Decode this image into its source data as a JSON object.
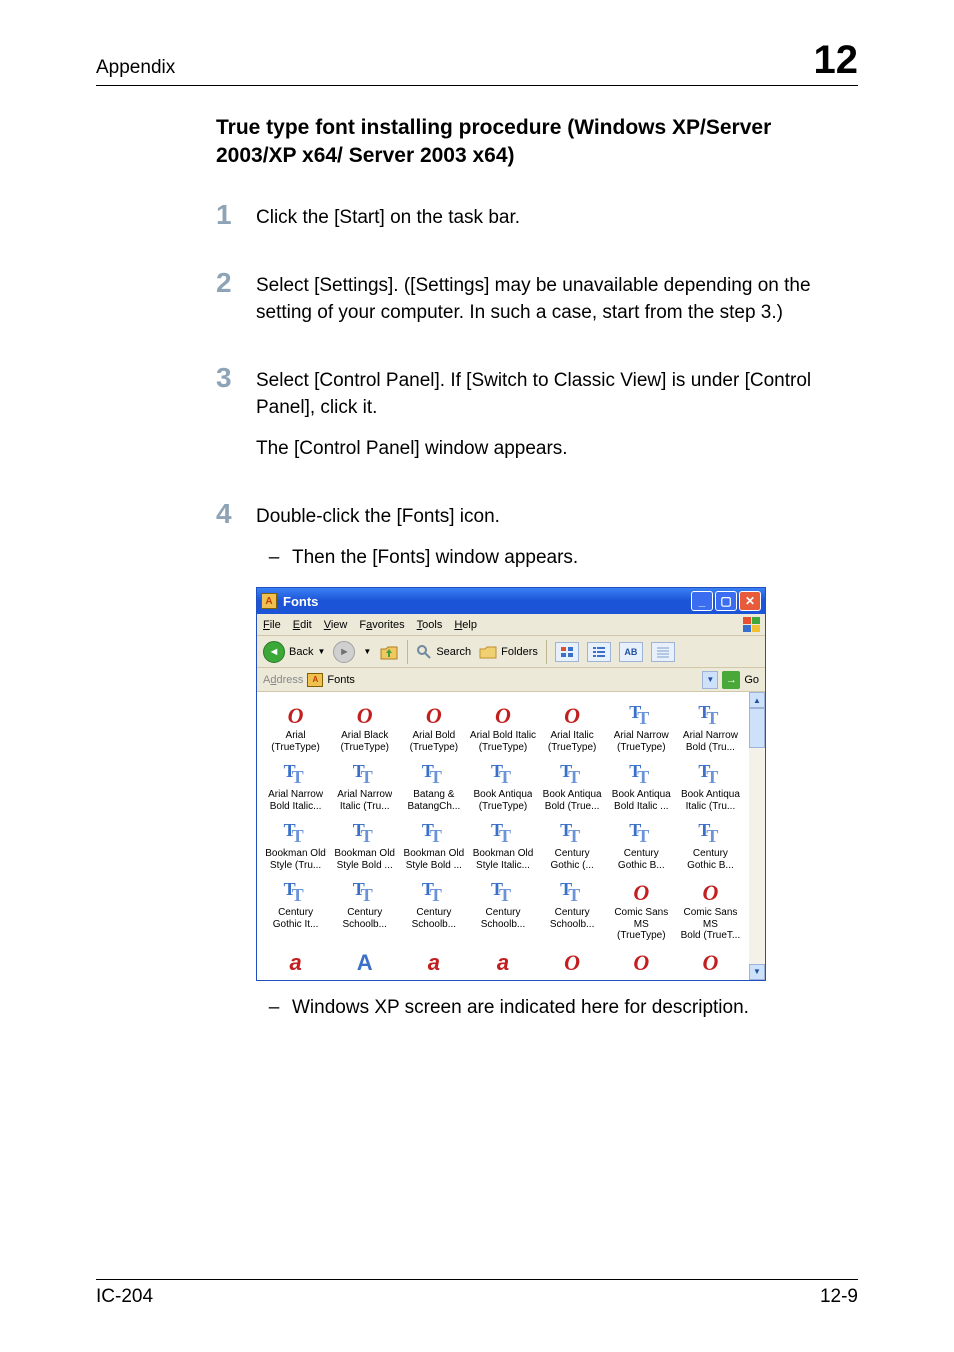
{
  "header": {
    "label": "Appendix",
    "chapter": "12"
  },
  "section_title": "True type font installing procedure (Windows XP/Server 2003/XP x64/ Server 2003 x64)",
  "steps": [
    {
      "num": "1",
      "paras": [
        "Click the [Start] on the task bar."
      ],
      "subs": []
    },
    {
      "num": "2",
      "paras": [
        "Select [Settings]. ([Settings] may be unavailable depending on the setting of your computer. In such a case, start from the step 3.)"
      ],
      "subs": []
    },
    {
      "num": "3",
      "paras": [
        "Select [Control Panel]. If [Switch to Classic View] is under [Control Panel], click it.",
        "The [Control Panel] window appears."
      ],
      "subs": []
    },
    {
      "num": "4",
      "paras": [
        "Double-click the [Fonts] icon."
      ],
      "subs": [
        "Then the [Fonts] window appears."
      ]
    }
  ],
  "post_sub": "Windows XP screen are indicated here for description.",
  "footer": {
    "left": "IC-204",
    "right": "12-9"
  },
  "win": {
    "title": "Fonts",
    "menu": [
      "File",
      "Edit",
      "View",
      "Favorites",
      "Tools",
      "Help"
    ],
    "back_label": "Back",
    "search_label": "Search",
    "folders_label": "Folders",
    "go_label": "Go",
    "address_label": "Address",
    "address_value": "Fonts",
    "view_btn_ab": "AB",
    "fonts": [
      {
        "icon": "o",
        "glyph": "O",
        "line1": "Arial",
        "line2": "(TrueType)"
      },
      {
        "icon": "o",
        "glyph": "O",
        "line1": "Arial Black",
        "line2": "(TrueType)"
      },
      {
        "icon": "o",
        "glyph": "O",
        "line1": "Arial Bold",
        "line2": "(TrueType)"
      },
      {
        "icon": "o",
        "glyph": "O",
        "line1": "Arial Bold Italic",
        "line2": "(TrueType)"
      },
      {
        "icon": "o",
        "glyph": "O",
        "line1": "Arial Italic",
        "line2": "(TrueType)"
      },
      {
        "icon": "tt",
        "glyph": "",
        "line1": "Arial Narrow",
        "line2": "(TrueType)"
      },
      {
        "icon": "tt",
        "glyph": "",
        "line1": "Arial Narrow",
        "line2": "Bold (Tru..."
      },
      {
        "icon": "tt",
        "glyph": "",
        "line1": "Arial Narrow",
        "line2": "Bold Italic..."
      },
      {
        "icon": "tt",
        "glyph": "",
        "line1": "Arial Narrow",
        "line2": "Italic (Tru..."
      },
      {
        "icon": "tt",
        "glyph": "",
        "line1": "Batang &",
        "line2": "BatangCh..."
      },
      {
        "icon": "tt",
        "glyph": "",
        "line1": "Book Antiqua",
        "line2": "(TrueType)"
      },
      {
        "icon": "tt",
        "glyph": "",
        "line1": "Book Antiqua",
        "line2": "Bold (True..."
      },
      {
        "icon": "tt",
        "glyph": "",
        "line1": "Book Antiqua",
        "line2": "Bold Italic ..."
      },
      {
        "icon": "tt",
        "glyph": "",
        "line1": "Book Antiqua",
        "line2": "Italic (Tru..."
      },
      {
        "icon": "tt",
        "glyph": "",
        "line1": "Bookman Old",
        "line2": "Style (Tru..."
      },
      {
        "icon": "tt",
        "glyph": "",
        "line1": "Bookman Old",
        "line2": "Style Bold ..."
      },
      {
        "icon": "tt",
        "glyph": "",
        "line1": "Bookman Old",
        "line2": "Style Bold ..."
      },
      {
        "icon": "tt",
        "glyph": "",
        "line1": "Bookman Old",
        "line2": "Style Italic..."
      },
      {
        "icon": "tt",
        "glyph": "",
        "line1": "Century",
        "line2": "Gothic (..."
      },
      {
        "icon": "tt",
        "glyph": "",
        "line1": "Century",
        "line2": "Gothic B..."
      },
      {
        "icon": "tt",
        "glyph": "",
        "line1": "Century",
        "line2": "Gothic B..."
      },
      {
        "icon": "tt",
        "glyph": "",
        "line1": "Century",
        "line2": "Gothic It..."
      },
      {
        "icon": "tt",
        "glyph": "",
        "line1": "Century",
        "line2": "Schoolb..."
      },
      {
        "icon": "tt",
        "glyph": "",
        "line1": "Century",
        "line2": "Schoolb..."
      },
      {
        "icon": "tt",
        "glyph": "",
        "line1": "Century",
        "line2": "Schoolb..."
      },
      {
        "icon": "tt",
        "glyph": "",
        "line1": "Century",
        "line2": "Schoolb..."
      },
      {
        "icon": "o",
        "glyph": "O",
        "line1": "Comic Sans MS",
        "line2": "(TrueType)"
      },
      {
        "icon": "o",
        "glyph": "O",
        "line1": "Comic Sans MS",
        "line2": "Bold (TrueT..."
      },
      {
        "icon": "a-red",
        "glyph": "a",
        "line1": "",
        "line2": ""
      },
      {
        "icon": "a-blue",
        "glyph": "A",
        "line1": "",
        "line2": ""
      },
      {
        "icon": "a-red",
        "glyph": "a",
        "line1": "",
        "line2": ""
      },
      {
        "icon": "a-red",
        "glyph": "a",
        "line1": "",
        "line2": ""
      },
      {
        "icon": "o",
        "glyph": "O",
        "line1": "",
        "line2": ""
      },
      {
        "icon": "o",
        "glyph": "O",
        "line1": "",
        "line2": ""
      },
      {
        "icon": "o",
        "glyph": "O",
        "line1": "",
        "line2": ""
      }
    ]
  },
  "colors": {
    "step_num": "#8ea4b6",
    "titlebar_grad_top": "#3a80f4",
    "titlebar_grad_bot": "#1b54d6",
    "close_btn": "#e75a3a",
    "xp_bg": "#ece9d8",
    "o_icon": "#c22020",
    "tt_icon": "#3a70c8",
    "green_btn": "#3ba838"
  }
}
